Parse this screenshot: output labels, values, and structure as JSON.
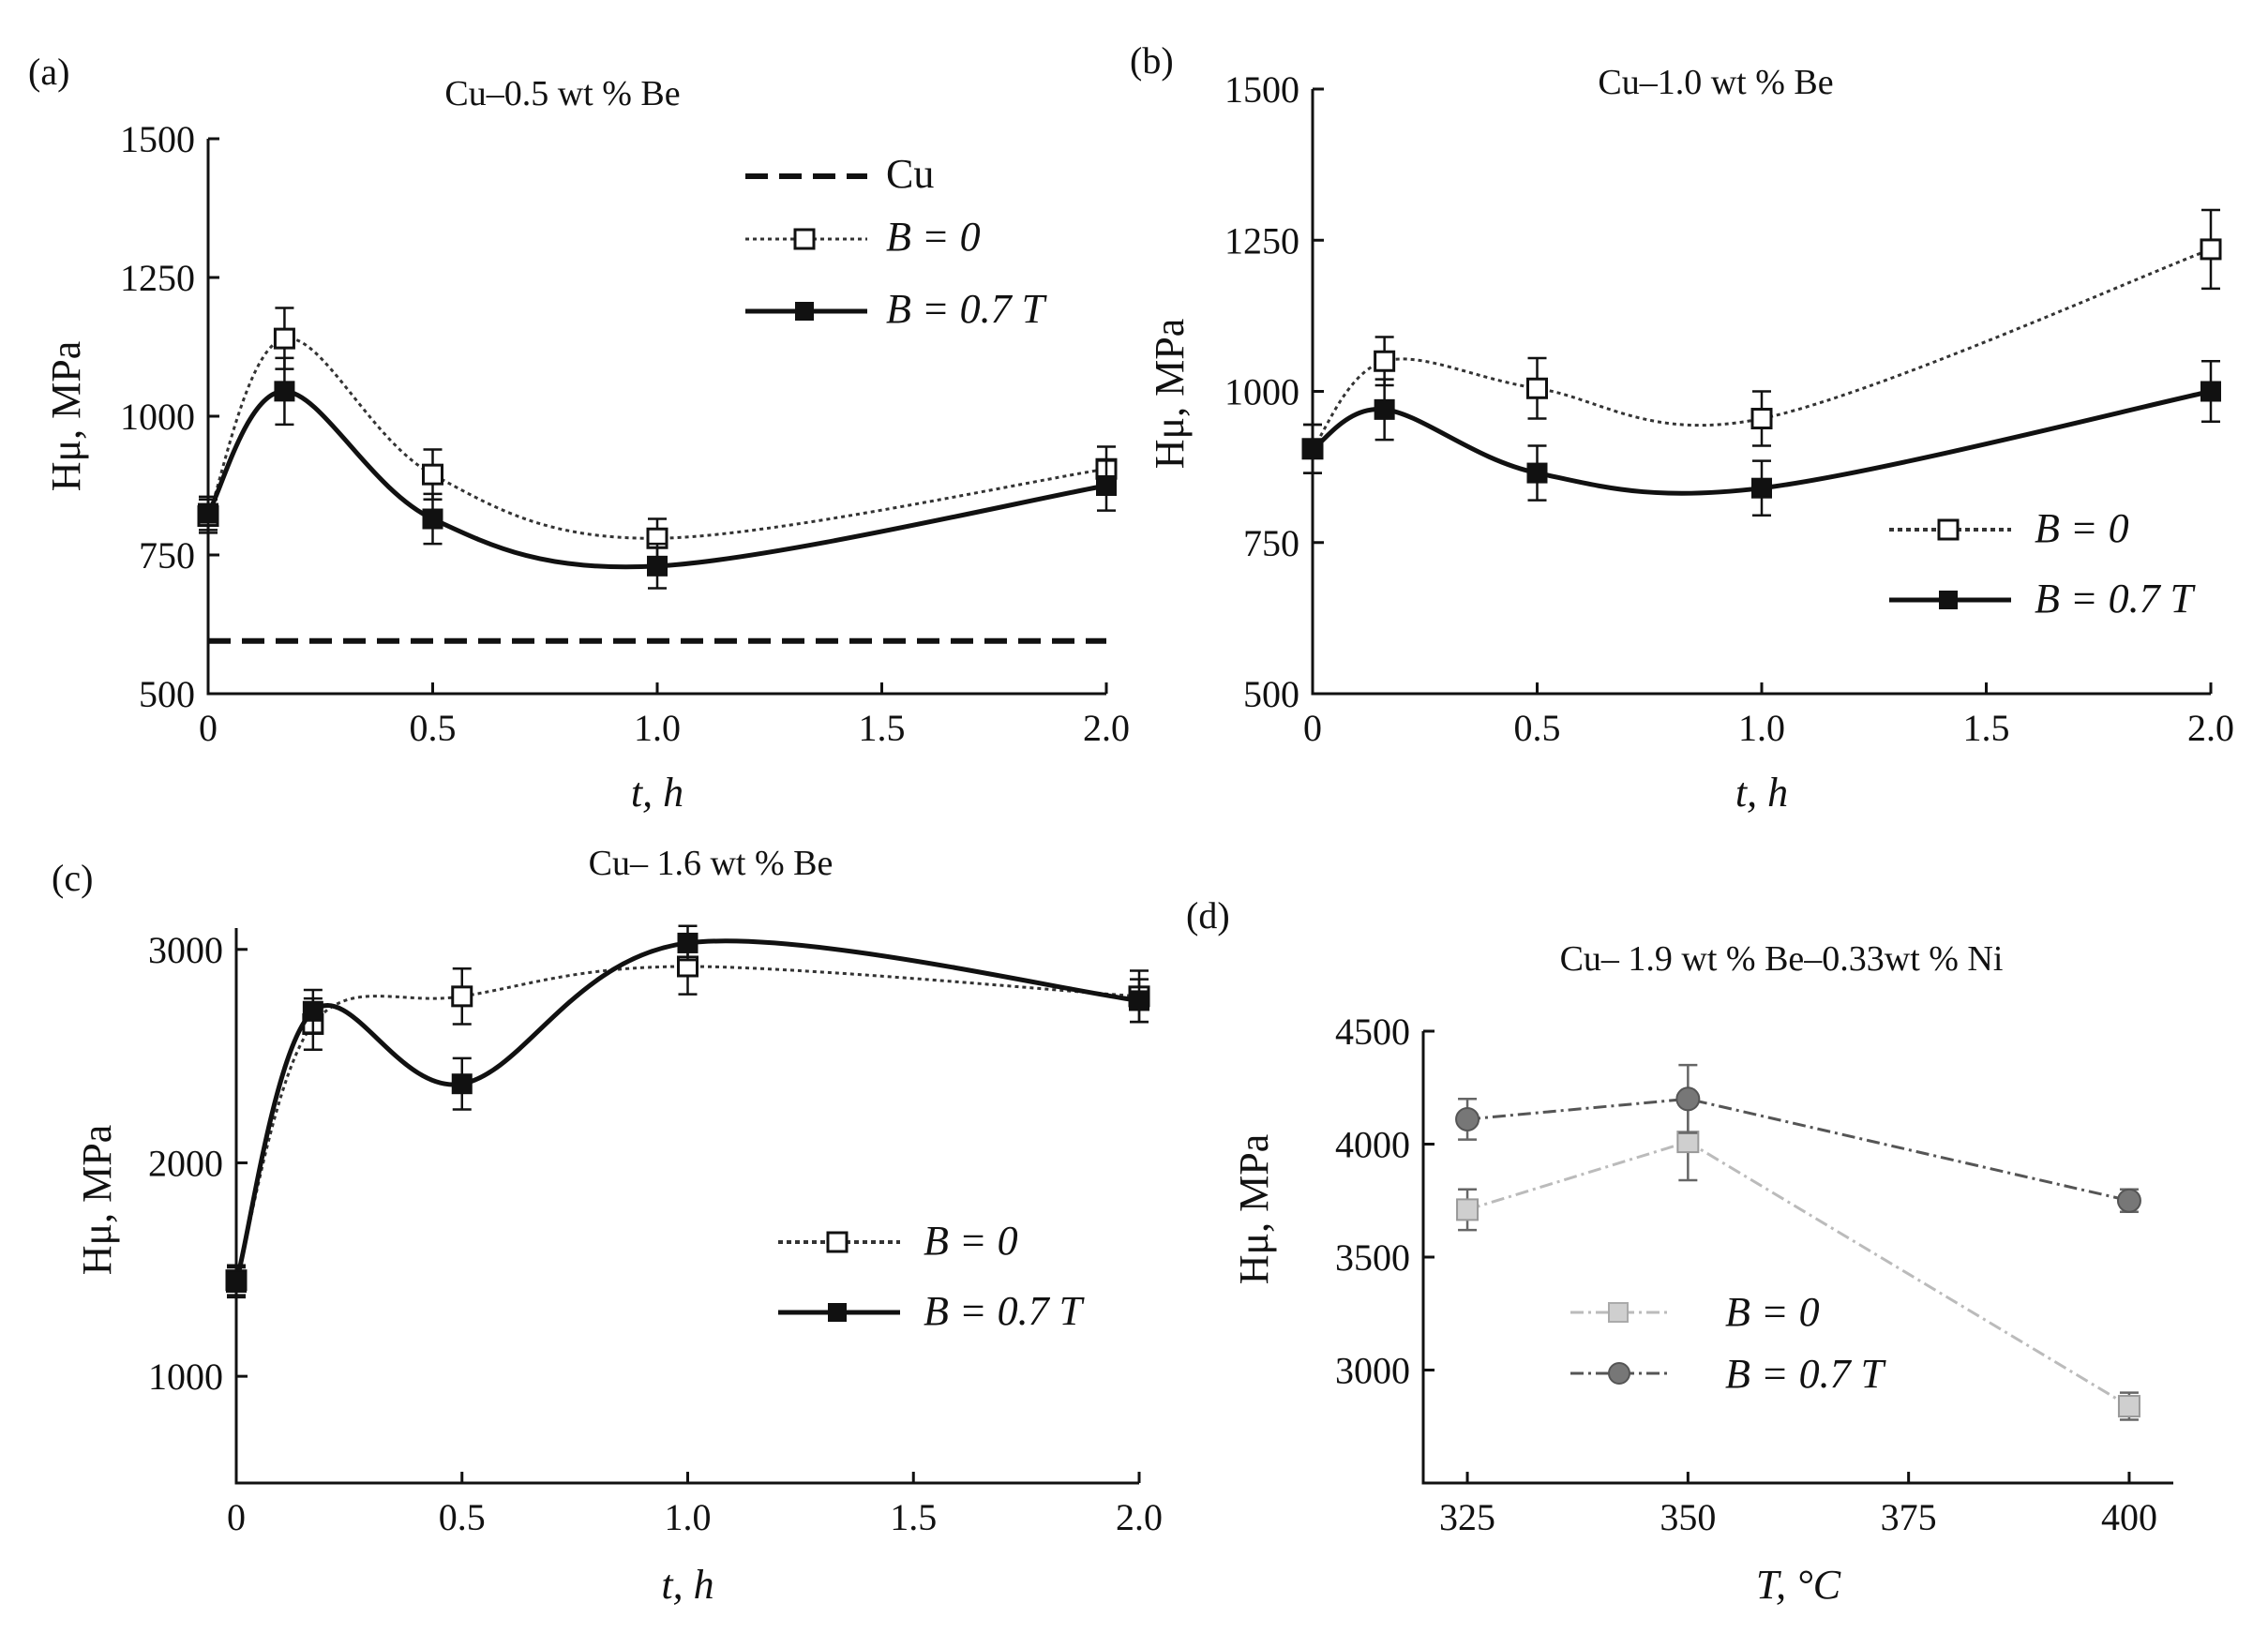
{
  "chart_data": [
    {
      "panel": "(a)",
      "type": "line",
      "title": "Cu–0.5 wt % Be",
      "xlabel": "t, h",
      "ylabel": "Hμ, MPa",
      "xlim": [
        0,
        2.0
      ],
      "ylim": [
        500,
        1500
      ],
      "xticks": [
        0,
        0.5,
        1.0,
        1.5,
        2.0
      ],
      "xtick_labels": [
        "0",
        "0.5",
        "1.0",
        "1.5",
        "2.0"
      ],
      "yticks": [
        500,
        750,
        1000,
        1250,
        1500
      ],
      "ytick_labels": [
        "500",
        "750",
        "1000",
        "1250",
        "1500"
      ],
      "legend_position": "top-right",
      "series": [
        {
          "name": "Cu",
          "label": "Cu",
          "style": "dashed",
          "marker": "none",
          "x": [
            0,
            2.0
          ],
          "values": [
            595,
            595
          ],
          "err": [
            0,
            0
          ]
        },
        {
          "name": "B = 0",
          "label": "B = 0",
          "style": "dotted",
          "marker": "open-square",
          "x": [
            0,
            0.17,
            0.5,
            1.0,
            2.0
          ],
          "values": [
            820,
            1140,
            895,
            780,
            905
          ],
          "err": [
            30,
            55,
            45,
            35,
            40
          ]
        },
        {
          "name": "B = 0.7 T",
          "label": "B = 0.7 T",
          "style": "solid",
          "marker": "filled-square",
          "x": [
            0,
            0.17,
            0.5,
            1.0,
            2.0
          ],
          "values": [
            825,
            1045,
            815,
            730,
            875
          ],
          "err": [
            30,
            60,
            45,
            40,
            45
          ]
        }
      ]
    },
    {
      "panel": "(b)",
      "type": "line",
      "title": "Cu–1.0 wt % Be",
      "xlabel": "t, h",
      "ylabel": "Hμ, MPa",
      "xlim": [
        0,
        2.0
      ],
      "ylim": [
        500,
        1500
      ],
      "xticks": [
        0,
        0.5,
        1.0,
        1.5,
        2.0
      ],
      "xtick_labels": [
        "0",
        "0.5",
        "1.0",
        "1.5",
        "2.0"
      ],
      "yticks": [
        500,
        750,
        1000,
        1250,
        1500
      ],
      "ytick_labels": [
        "500",
        "750",
        "1000",
        "1250",
        "1500"
      ],
      "legend_position": "bottom-right",
      "series": [
        {
          "name": "B = 0",
          "label": "B = 0",
          "style": "dotted",
          "marker": "open-square",
          "x": [
            0,
            0.16,
            0.5,
            1.0,
            2.0
          ],
          "values": [
            905,
            1050,
            1005,
            955,
            1235
          ],
          "err": [
            40,
            40,
            50,
            45,
            65
          ]
        },
        {
          "name": "B = 0.7 T",
          "label": "B = 0.7 T",
          "style": "solid",
          "marker": "filled-square",
          "x": [
            0,
            0.16,
            0.5,
            1.0,
            2.0
          ],
          "values": [
            905,
            970,
            865,
            840,
            1000
          ],
          "err": [
            40,
            50,
            45,
            45,
            50
          ]
        }
      ]
    },
    {
      "panel": "(c)",
      "type": "line",
      "title": "Cu– 1.6 wt % Be",
      "xlabel": "t, h",
      "ylabel": "Hμ, MPa",
      "xlim": [
        0,
        2.0
      ],
      "ylim": [
        500,
        3100
      ],
      "xticks": [
        0,
        0.5,
        1.0,
        1.5,
        2.0
      ],
      "xtick_labels": [
        "0",
        "0.5",
        "1.0",
        "1.5",
        "2.0"
      ],
      "yticks": [
        1000,
        2000,
        3000
      ],
      "ytick_labels": [
        "1000",
        "2000",
        "3000"
      ],
      "legend_position": "center-right",
      "series": [
        {
          "name": "B = 0",
          "label": "B = 0",
          "style": "dotted",
          "marker": "open-square",
          "x": [
            0,
            0.17,
            0.5,
            1.0,
            2.0
          ],
          "values": [
            1450,
            2650,
            2780,
            2920,
            2780
          ],
          "err": [
            70,
            120,
            130,
            130,
            120
          ]
        },
        {
          "name": "B = 0.7 T",
          "label": "B = 0.7 T",
          "style": "solid",
          "marker": "filled-square",
          "x": [
            0,
            0.17,
            0.5,
            1.0,
            2.0
          ],
          "values": [
            1440,
            2710,
            2370,
            3030,
            2760
          ],
          "err": [
            70,
            100,
            120,
            80,
            100
          ]
        }
      ]
    },
    {
      "panel": "(d)",
      "type": "line",
      "title": "Cu– 1.9 wt % Be–0.33wt % Ni",
      "xlabel": "T, °C",
      "ylabel": "Hμ, MPa",
      "xlim": [
        320,
        405
      ],
      "ylim": [
        2500,
        4500
      ],
      "xticks": [
        325,
        350,
        375,
        400
      ],
      "xtick_labels": [
        "325",
        "350",
        "375",
        "400"
      ],
      "yticks": [
        3000,
        3500,
        4000,
        4500
      ],
      "ytick_labels": [
        "3000",
        "3500",
        "4000",
        "4500"
      ],
      "legend_position": "bottom-left",
      "series": [
        {
          "name": "B = 0",
          "label": "B = 0",
          "style": "dash-dot-gray",
          "marker": "gray-square",
          "x": [
            325,
            350,
            400
          ],
          "values": [
            3710,
            4010,
            2840
          ],
          "err": [
            90,
            170,
            60
          ]
        },
        {
          "name": "B = 0.7 T",
          "label": "B = 0.7 T",
          "style": "dash-dot-dark",
          "marker": "gray-circle",
          "x": [
            325,
            350,
            400
          ],
          "values": [
            4110,
            4200,
            3750
          ],
          "err": [
            90,
            150,
            50
          ]
        }
      ]
    }
  ]
}
